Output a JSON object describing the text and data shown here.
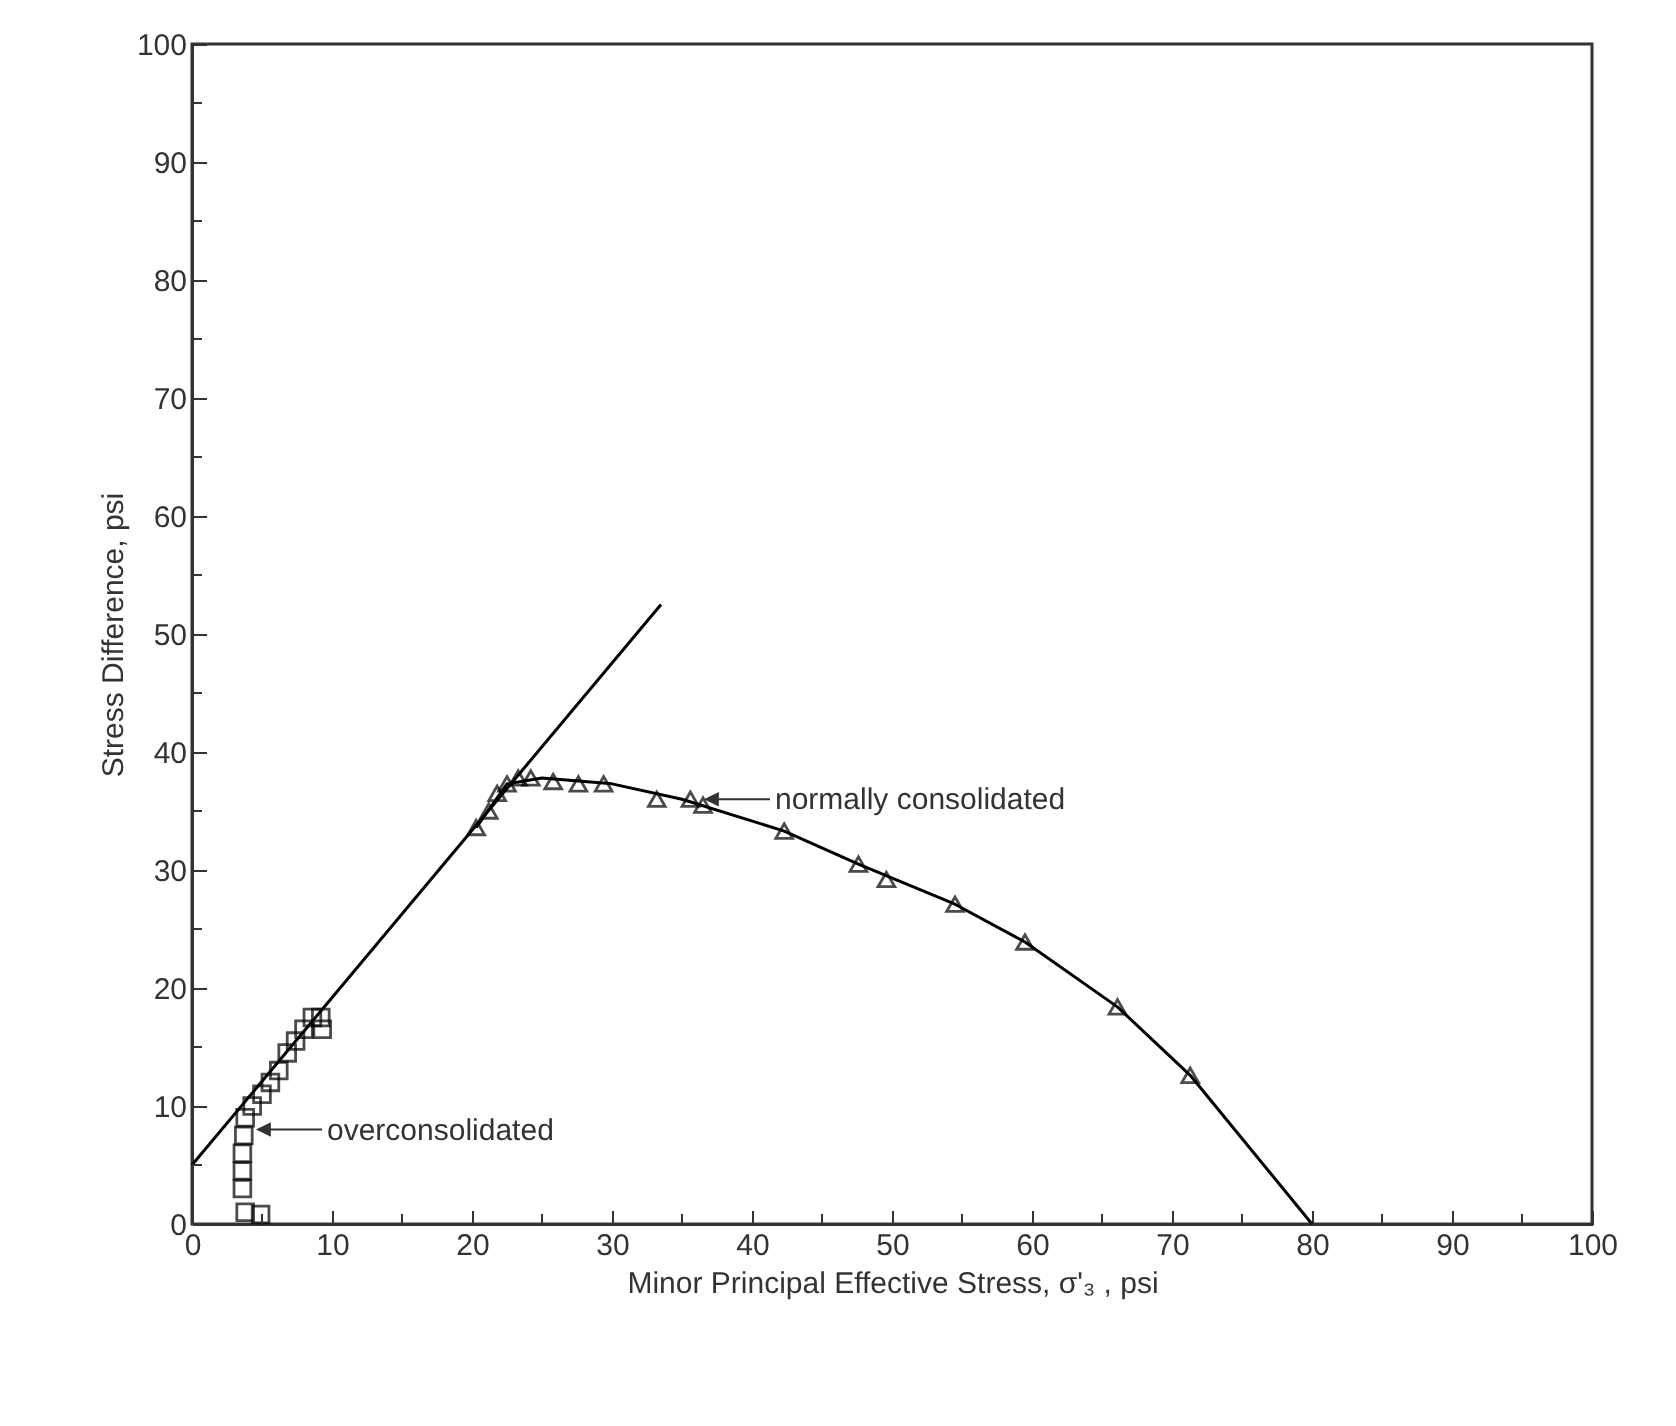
{
  "chart_data": {
    "type": "scatter",
    "xlabel": "Minor Principal Effective Stress, σ'₃ , psi",
    "ylabel": "Stress Difference, psi",
    "xlim": [
      0,
      100
    ],
    "ylim": [
      0,
      100
    ],
    "xticks": [
      0,
      {
        "value": 5,
        "label": null
      },
      10,
      {
        "value": 15,
        "label": null
      },
      20,
      {
        "value": 25,
        "label": null
      },
      30,
      {
        "value": 35,
        "label": null
      },
      40,
      {
        "value": 45,
        "label": null
      },
      50,
      {
        "value": 55,
        "label": null
      },
      60,
      {
        "value": 65,
        "label": null
      },
      70,
      {
        "value": 75,
        "label": null
      },
      80,
      {
        "value": 85,
        "label": null
      },
      90,
      {
        "value": 95,
        "label": null
      },
      100
    ],
    "yticks": [
      0,
      {
        "value": 5,
        "label": null
      },
      10,
      {
        "value": 15,
        "label": null
      },
      20,
      {
        "value": 25,
        "label": null
      },
      30,
      {
        "value": 35,
        "label": null
      },
      40,
      {
        "value": 45,
        "label": null
      },
      50,
      {
        "value": 55,
        "label": null
      },
      60,
      {
        "value": 65,
        "label": null
      },
      70,
      {
        "value": 75,
        "label": null
      },
      80,
      {
        "value": 85,
        "label": null
      },
      90,
      {
        "value": 95,
        "label": null
      },
      100
    ],
    "grid": false,
    "series": [
      {
        "type": "scatter",
        "marker": "square",
        "color": "#000000",
        "x": [
          3.8,
          4.9,
          3.6,
          3.6,
          3.6,
          3.7,
          3.8,
          4.3,
          5.0,
          5.6,
          6.2,
          6.8,
          7.4,
          8.0,
          8.6,
          9.2,
          9.3
        ],
        "values": [
          1,
          0.8,
          3,
          4.5,
          6,
          7.5,
          9,
          10,
          11,
          12,
          13,
          14.5,
          15.5,
          16.5,
          17.5,
          17.5,
          16.5
        ]
      },
      {
        "type": "scatter",
        "marker": "triangle",
        "color": "#000000",
        "x": [
          20.3,
          21.2,
          21.8,
          22.5,
          23.3,
          24.2,
          25.8,
          27.6,
          29.4,
          33.2,
          35.6,
          36.5,
          42.3,
          47.6,
          49.6,
          54.5,
          59.5,
          66.1,
          71.3
        ],
        "values": [
          33.6,
          35,
          36.5,
          37.3,
          37.8,
          37.8,
          37.5,
          37.3,
          37.3,
          36,
          36,
          35.5,
          33.3,
          30.5,
          29.2,
          27.1,
          23.9,
          18.4,
          12.6
        ]
      },
      {
        "type": "line",
        "line_style": "solid",
        "color": "#000000",
        "x": [
          20.3,
          22.5,
          25,
          30,
          35,
          42.3,
          47.6,
          54.5,
          59.5,
          66.1,
          71.3,
          80
        ],
        "values": [
          33.6,
          37.3,
          37.8,
          37.3,
          36,
          33.3,
          30.5,
          27.1,
          23.9,
          18.4,
          12.6,
          0
        ]
      },
      {
        "type": "line",
        "line_style": "solid",
        "color": "#000000",
        "x": [
          0,
          33.5
        ],
        "values": [
          5,
          52.5
        ]
      }
    ],
    "annotations": [
      {
        "text": "normally consolidated",
        "x": 36.5,
        "y": 36
      },
      {
        "text": "overconsolidated",
        "x": 4.5,
        "y": 8
      }
    ]
  }
}
